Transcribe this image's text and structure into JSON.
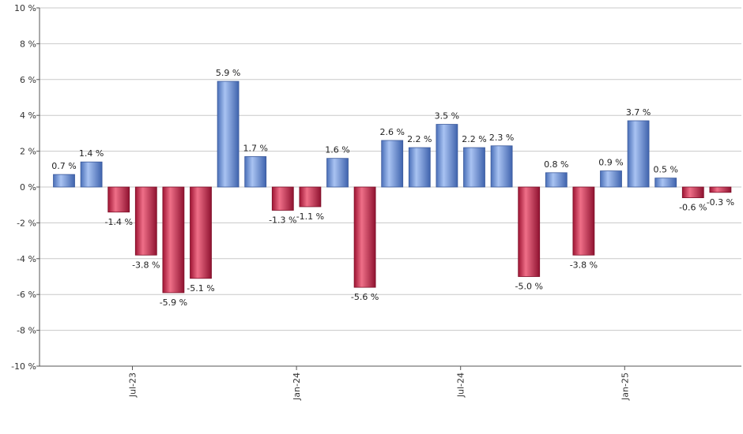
{
  "chart_data": {
    "type": "bar",
    "title": "",
    "xlabel": "",
    "ylabel": "",
    "ylim": [
      -10,
      10
    ],
    "y_ticks": [
      {
        "value": 10,
        "label": "10 %"
      },
      {
        "value": 8,
        "label": "8 %"
      },
      {
        "value": 6,
        "label": "6 %"
      },
      {
        "value": 4,
        "label": "4 %"
      },
      {
        "value": 2,
        "label": "2 %"
      },
      {
        "value": 0,
        "label": "0 %"
      },
      {
        "value": -2,
        "label": "-2 %"
      },
      {
        "value": -4,
        "label": "-4 %"
      },
      {
        "value": -6,
        "label": "-6 %"
      },
      {
        "value": -8,
        "label": "-8 %"
      },
      {
        "value": -10,
        "label": "-10 %"
      }
    ],
    "x_ticks": [
      {
        "after_index": 2,
        "label": "Jul-23"
      },
      {
        "after_index": 8,
        "label": "Jan-24"
      },
      {
        "after_index": 14,
        "label": "Jul-24"
      },
      {
        "after_index": 20,
        "label": "Jan-25"
      }
    ],
    "grid": true,
    "positive_color": "#6f93dc",
    "negative_color": "#c8264a",
    "values": [
      0.7,
      1.4,
      -1.4,
      -3.8,
      -5.9,
      -5.1,
      5.9,
      1.7,
      -1.3,
      -1.1,
      1.6,
      -5.6,
      2.6,
      2.2,
      3.5,
      2.2,
      2.3,
      -5.0,
      0.8,
      -3.8,
      0.9,
      3.7,
      0.5,
      -0.6,
      -0.3
    ],
    "labels": [
      "0.7 %",
      "1.4 %",
      "-1.4 %",
      "-3.8 %",
      "-5.9 %",
      "-5.1 %",
      "5.9 %",
      "1.7 %",
      "-1.3 %",
      "-1.1 %",
      "1.6 %",
      "-5.6 %",
      "2.6 %",
      "2.2 %",
      "3.5 %",
      "2.2 %",
      "2.3 %",
      "-5.0 %",
      "0.8 %",
      "-3.8 %",
      "0.9 %",
      "3.7 %",
      "0.5 %",
      "-0.6 %",
      "-0.3 %"
    ]
  }
}
